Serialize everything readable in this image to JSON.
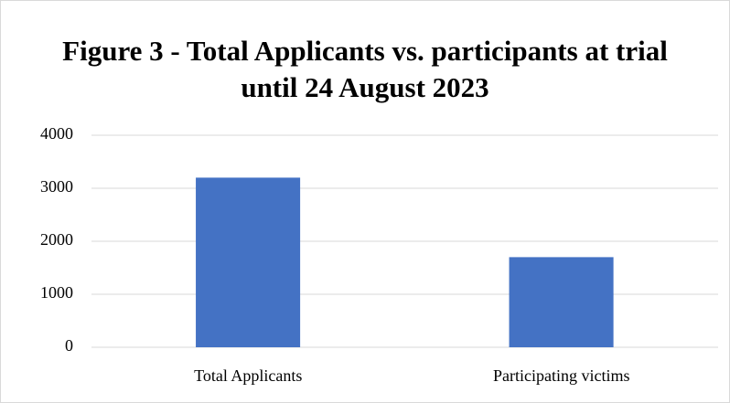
{
  "chart_data": {
    "type": "bar",
    "title": "Figure 3 - Total Applicants vs. participants at trial until 24 August 2023",
    "categories": [
      "Total Applicants",
      "Participating victims"
    ],
    "values": [
      3200,
      1700
    ],
    "color": "#4472c4",
    "ylim": [
      0,
      4000
    ],
    "yticks": [
      0,
      1000,
      2000,
      3000,
      4000
    ],
    "grid": true
  }
}
